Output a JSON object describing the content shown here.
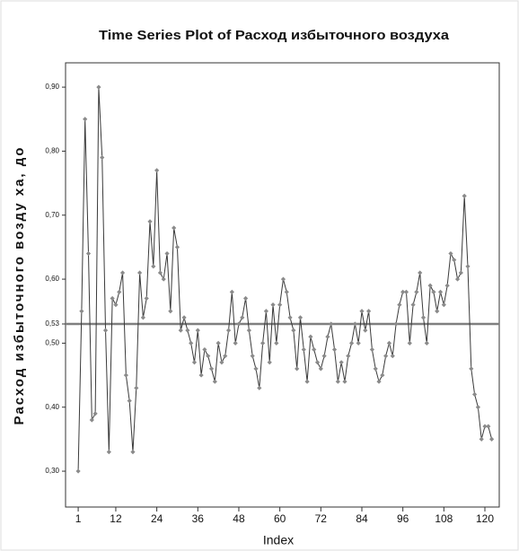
{
  "chart_data": {
    "type": "line",
    "title": "Time Series Plot of Расход избыточного воздуха",
    "xlabel": "Index",
    "ylabel": "Расход избыточного возду ха, до",
    "x": [
      1,
      2,
      3,
      4,
      5,
      6,
      7,
      8,
      9,
      10,
      11,
      12,
      13,
      14,
      15,
      16,
      17,
      18,
      19,
      20,
      21,
      22,
      23,
      24,
      25,
      26,
      27,
      28,
      29,
      30,
      31,
      32,
      33,
      34,
      35,
      36,
      37,
      38,
      39,
      40,
      41,
      42,
      43,
      44,
      45,
      46,
      47,
      48,
      49,
      50,
      51,
      52,
      53,
      54,
      55,
      56,
      57,
      58,
      59,
      60,
      61,
      62,
      63,
      64,
      65,
      66,
      67,
      68,
      69,
      70,
      71,
      72,
      73,
      74,
      75,
      76,
      77,
      78,
      79,
      80,
      81,
      82,
      83,
      84,
      85,
      86,
      87,
      88,
      89,
      90,
      91,
      92,
      93,
      94,
      95,
      96,
      97,
      98,
      99,
      100,
      101,
      102,
      103,
      104,
      105,
      106,
      107,
      108,
      109,
      110,
      111,
      112,
      113,
      114,
      115,
      116,
      117,
      118,
      119,
      120,
      121,
      122
    ],
    "values": [
      0.3,
      0.55,
      0.85,
      0.64,
      0.38,
      0.39,
      0.9,
      0.79,
      0.52,
      0.33,
      0.57,
      0.56,
      0.58,
      0.61,
      0.45,
      0.41,
      0.33,
      0.43,
      0.61,
      0.54,
      0.57,
      0.69,
      0.62,
      0.77,
      0.61,
      0.6,
      0.64,
      0.55,
      0.68,
      0.65,
      0.52,
      0.54,
      0.52,
      0.5,
      0.47,
      0.52,
      0.45,
      0.49,
      0.48,
      0.46,
      0.44,
      0.5,
      0.47,
      0.48,
      0.52,
      0.58,
      0.5,
      0.53,
      0.54,
      0.57,
      0.52,
      0.48,
      0.46,
      0.43,
      0.5,
      0.55,
      0.47,
      0.56,
      0.5,
      0.56,
      0.6,
      0.58,
      0.54,
      0.52,
      0.46,
      0.54,
      0.49,
      0.44,
      0.51,
      0.49,
      0.47,
      0.46,
      0.48,
      0.51,
      0.53,
      0.49,
      0.44,
      0.47,
      0.44,
      0.48,
      0.5,
      0.53,
      0.5,
      0.55,
      0.52,
      0.55,
      0.49,
      0.46,
      0.44,
      0.45,
      0.48,
      0.5,
      0.48,
      0.53,
      0.56,
      0.58,
      0.58,
      0.5,
      0.56,
      0.58,
      0.61,
      0.54,
      0.5,
      0.59,
      0.58,
      0.55,
      0.58,
      0.56,
      0.59,
      0.64,
      0.63,
      0.6,
      0.61,
      0.73,
      0.62,
      0.46,
      0.42,
      0.4,
      0.35,
      0.37,
      0.37,
      0.35
    ],
    "color": "#3a3a3a",
    "marker_color": "#8a8a8a",
    "hline": 0.53,
    "hline_color": "#7f7f7f",
    "xlim": [
      -2.7,
      124.2
    ],
    "ylim": [
      0.244,
      0.938
    ],
    "xticks": [
      1,
      12,
      24,
      36,
      48,
      60,
      72,
      84,
      96,
      108,
      120
    ],
    "yticks": [
      {
        "value": 0.3,
        "label": "0,30"
      },
      {
        "value": 0.4,
        "label": "0,40"
      },
      {
        "value": 0.5,
        "label": "0,50"
      },
      {
        "value": 0.53,
        "label": "0,53"
      },
      {
        "value": 0.6,
        "label": "0,60"
      },
      {
        "value": 0.7,
        "label": "0,70"
      },
      {
        "value": 0.8,
        "label": "0,80"
      },
      {
        "value": 0.9,
        "label": "0,90"
      }
    ]
  }
}
